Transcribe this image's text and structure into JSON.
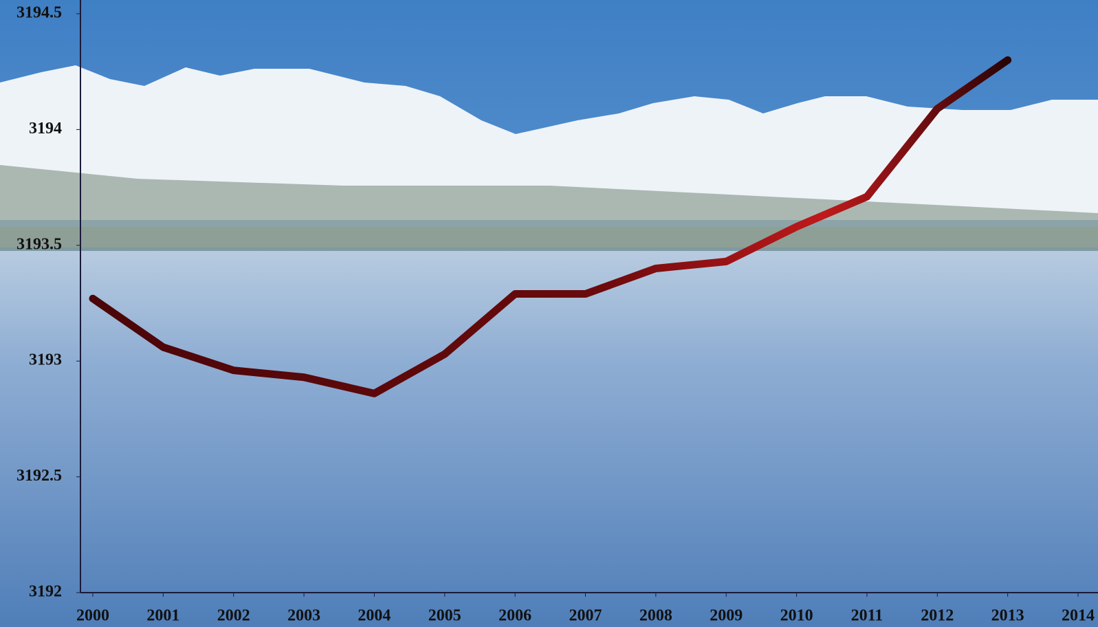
{
  "chart_data": {
    "type": "line",
    "x": [
      2000,
      2001,
      2002,
      2003,
      2004,
      2005,
      2006,
      2007,
      2008,
      2009,
      2010,
      2011,
      2012,
      2013
    ],
    "series": [
      {
        "color": "#8b0a0a",
        "values": [
          3193.27,
          3193.06,
          3192.96,
          3192.93,
          3192.86,
          3193.03,
          3193.29,
          3193.29,
          3193.4,
          3193.43,
          3193.58,
          3193.71,
          3194.09,
          3194.3
        ]
      }
    ],
    "xlim": [
      2000,
      2014
    ],
    "xticks": [
      2000,
      2001,
      2002,
      2003,
      2004,
      2005,
      2006,
      2007,
      2008,
      2009,
      2010,
      2011,
      2012,
      2013,
      2014
    ],
    "ylim": [
      3192,
      3194.5
    ],
    "yticks": [
      3192,
      3192.5,
      3193,
      3193.5,
      3194,
      3194.5
    ]
  }
}
